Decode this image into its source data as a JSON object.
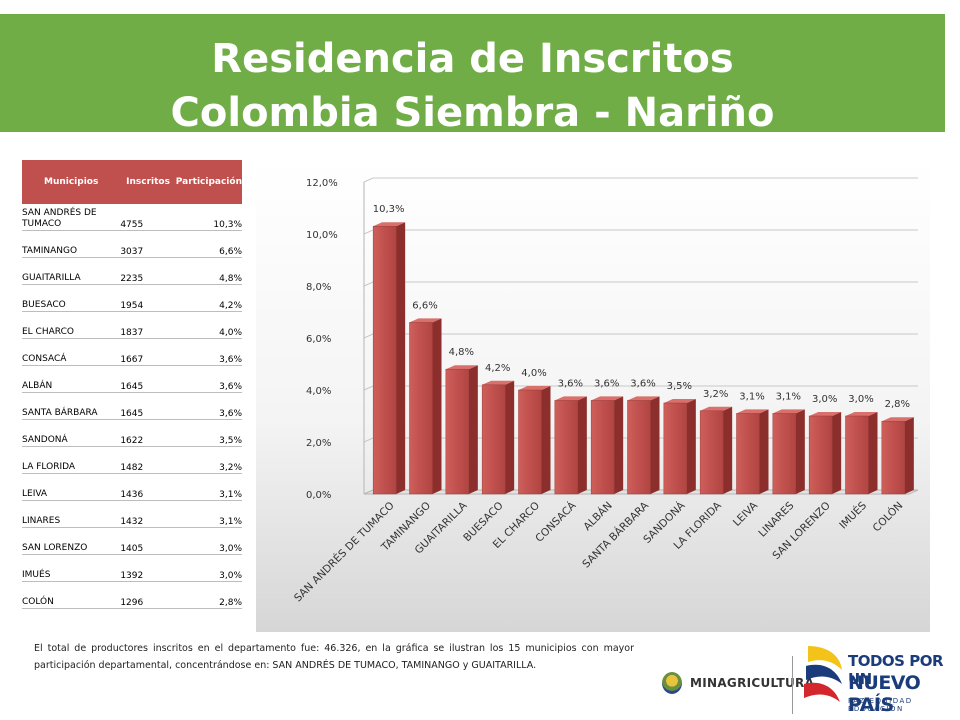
{
  "header": {
    "title_line1": "Residencia de Inscritos",
    "title_line2": "Colombia Siembra - Nariño"
  },
  "table": {
    "headers": [
      "Municipios",
      "Inscritos",
      "Participación"
    ],
    "rows": [
      [
        "SAN ANDRÉS DE TUMACO",
        "4755",
        "10,3%"
      ],
      [
        "TAMINANGO",
        "3037",
        "6,6%"
      ],
      [
        "GUAITARILLA",
        "2235",
        "4,8%"
      ],
      [
        "BUESACO",
        "1954",
        "4,2%"
      ],
      [
        "EL CHARCO",
        "1837",
        "4,0%"
      ],
      [
        "CONSACÁ",
        "1667",
        "3,6%"
      ],
      [
        "ALBÁN",
        "1645",
        "3,6%"
      ],
      [
        "SANTA BÁRBARA",
        "1645",
        "3,6%"
      ],
      [
        "SANDONÁ",
        "1622",
        "3,5%"
      ],
      [
        "LA FLORIDA",
        "1482",
        "3,2%"
      ],
      [
        "LEIVA",
        "1436",
        "3,1%"
      ],
      [
        "LINARES",
        "1432",
        "3,1%"
      ],
      [
        "SAN LORENZO",
        "1405",
        "3,0%"
      ],
      [
        "IMUÉS",
        "1392",
        "3,0%"
      ],
      [
        "COLÓN",
        "1296",
        "2,8%"
      ]
    ]
  },
  "chart_data": {
    "type": "bar",
    "categories": [
      "SAN ANDRÉS DE TUMACO",
      "TAMINANGO",
      "GUAITARILLA",
      "BUESACO",
      "EL CHARCO",
      "CONSACÁ",
      "ALBÁN",
      "SANTA BÁRBARA",
      "SANDONÁ",
      "LA FLORIDA",
      "LEIVA",
      "LINARES",
      "SAN LORENZO",
      "IMUÉS",
      "COLÓN"
    ],
    "values": [
      10.3,
      6.6,
      4.8,
      4.2,
      4.0,
      3.6,
      3.6,
      3.6,
      3.5,
      3.2,
      3.1,
      3.1,
      3.0,
      3.0,
      2.8
    ],
    "data_labels": [
      "10,3%",
      "6,6%",
      "4,8%",
      "4,2%",
      "4,0%",
      "3,6%",
      "3,6%",
      "3,6%",
      "3,5%",
      "3,2%",
      "3,1%",
      "3,1%",
      "3,0%",
      "3,0%",
      "2,8%"
    ],
    "yticks": [
      "0,0%",
      "2,0%",
      "4,0%",
      "6,0%",
      "8,0%",
      "10,0%",
      "12,0%"
    ],
    "ylim": [
      0,
      12
    ],
    "title": "",
    "xlabel": "",
    "ylabel": "",
    "grid": true,
    "bar_color": "#c0504d",
    "bar_dark": "#8c2e2b"
  },
  "footnote": "El total de productores inscritos en el departamento fue: 46.326, en la gráfica se ilustran los 15 municipios con mayor participación departamental, concentrándose en: SAN ANDRÉS DE TUMACO, TAMINANGO y GUAITARILLA.",
  "logos": {
    "ministry": "MINAGRICULTURA",
    "tpun_line1": "TODOS POR UN",
    "tpun_line2": "NUEVO PAÍS",
    "tpun_line3": "PAZ EQUIDAD EDUCACIÓN"
  }
}
